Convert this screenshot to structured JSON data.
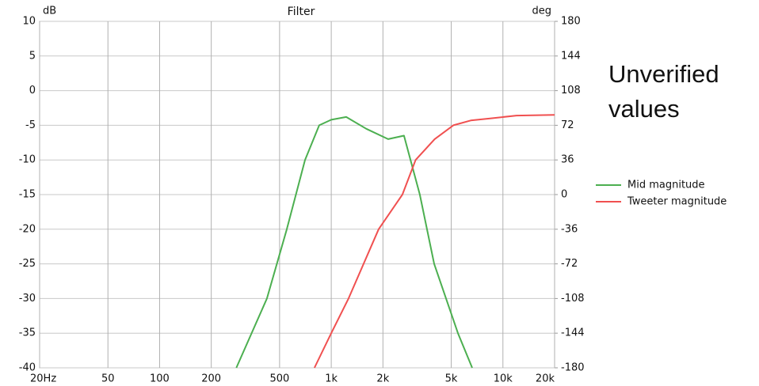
{
  "chart_data": {
    "type": "line",
    "title": "Filter",
    "ylabel": "dB",
    "y2label": "deg",
    "xscale": "log",
    "grid": true,
    "legend": "right",
    "annotation": "Unverified values",
    "xlim": [
      20,
      20000
    ],
    "xticks": [
      {
        "value": 20,
        "label": "20Hz"
      },
      50,
      100,
      200,
      500,
      {
        "value": 1000,
        "label": "1k"
      },
      {
        "value": 2000,
        "label": "2k"
      },
      {
        "value": 5000,
        "label": "5k"
      },
      {
        "value": 10000,
        "label": "10k"
      },
      {
        "value": 20000,
        "label": "20k"
      }
    ],
    "ylim": [
      -40,
      10
    ],
    "yticks": [
      10,
      5,
      0,
      -5,
      -10,
      -15,
      -20,
      -25,
      -30,
      -35,
      -40
    ],
    "y2lim": [
      -180,
      180
    ],
    "y2ticks": [
      180,
      144,
      108,
      72,
      36,
      0,
      -36,
      -72,
      -108,
      -144,
      -180
    ],
    "series": [
      {
        "name": "Mid magnitude",
        "color": "#4caf50",
        "x": [
          280,
          422,
          551,
          703,
          851,
          1000,
          1222,
          1600,
          2144,
          2653,
          3282,
          3975,
          5468,
          6620
        ],
        "values": [
          -40,
          -30,
          -20,
          -10,
          -5,
          -4.2,
          -3.8,
          -5.5,
          -7,
          -6.5,
          -15,
          -25,
          -35,
          -40
        ]
      },
      {
        "name": "Tweeter magnitude",
        "color": "#f05050",
        "x": [
          798,
          1000,
          1260,
          1888,
          2598,
          3100,
          4000,
          5140,
          6500,
          8530,
          12000,
          20000
        ],
        "values": [
          -40,
          -35,
          -30,
          -20,
          -15,
          -10,
          -7,
          -5,
          -4.3,
          -4,
          -3.6,
          -3.5
        ]
      }
    ]
  }
}
